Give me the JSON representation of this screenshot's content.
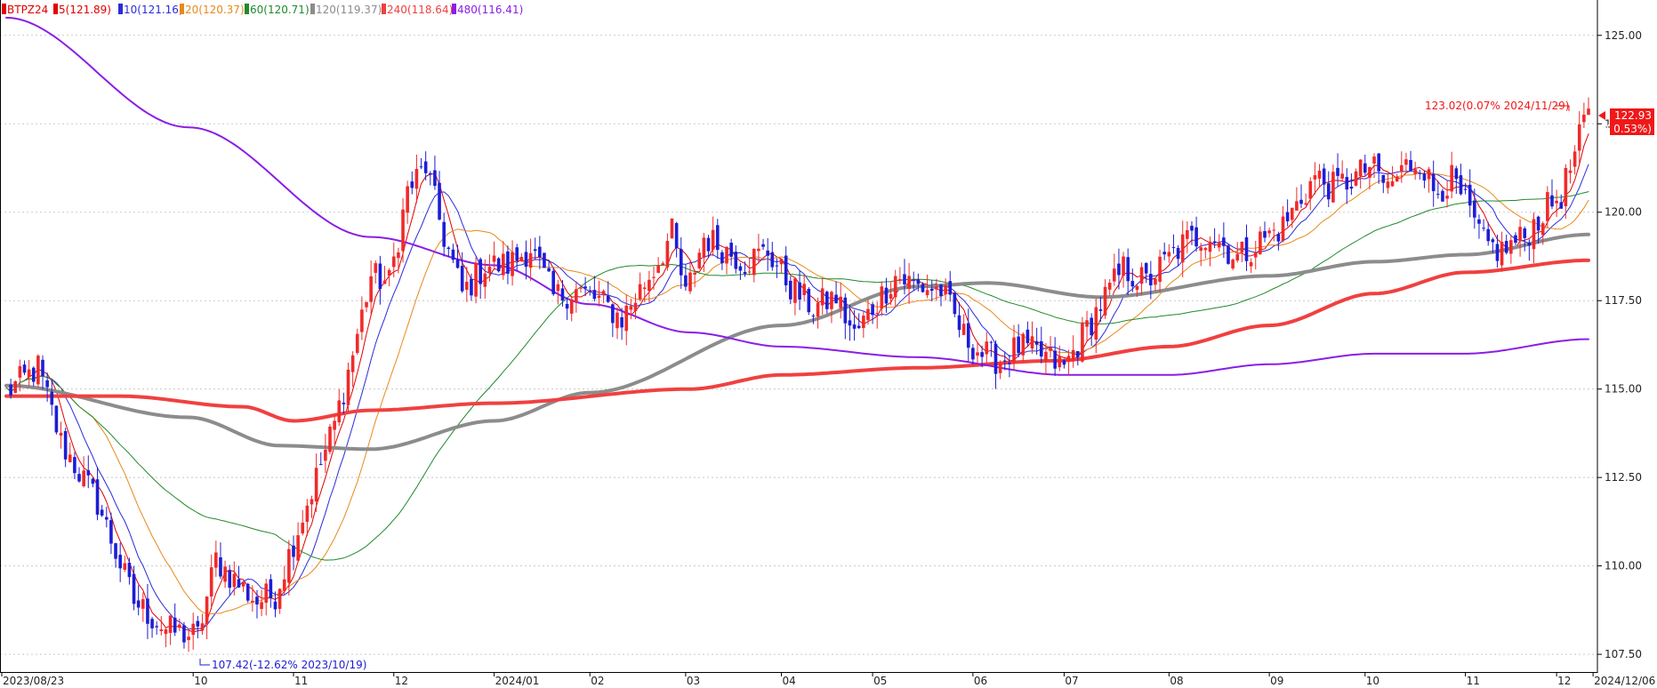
{
  "legend": [
    {
      "label": "BTPZ24",
      "color": "#e00000"
    },
    {
      "label": "5(121.89)",
      "color": "#e00000"
    },
    {
      "label": "10(121.16)",
      "color": "#2b2bd9"
    },
    {
      "label": "20(120.37)",
      "color": "#e8891a"
    },
    {
      "label": "60(120.71)",
      "color": "#1f8a2a"
    },
    {
      "label": "120(119.37)",
      "color": "#8c8c8c"
    },
    {
      "label": "240(118.64)",
      "color": "#f04040"
    },
    {
      "label": "480(116.41)",
      "color": "#8a1ee6"
    }
  ],
  "annotations": {
    "high_label": "123.02(0.07% 2024/11/29)",
    "low_label": "107.42(-12.62% 2023/10/19)",
    "last_price": "122.93",
    "last_change": "( 0.53%)"
  },
  "colors": {
    "up": "#f02a2a",
    "down": "#1d1dd6",
    "grid": "#c8c8c8",
    "price_tag": "#f01818"
  },
  "chart_data": {
    "type": "candlestick",
    "instrument": "BTPZ24",
    "x_start": "2023/08/23",
    "x_end": "2024/12/06",
    "ylim": [
      107,
      126
    ],
    "yticks": [
      107.5,
      110.0,
      112.5,
      115.0,
      117.5,
      120.0,
      122.5,
      125.0
    ],
    "ytick_labels": [
      "107.50",
      "110.00",
      "112.50",
      "115.00",
      "117.50",
      "120.00",
      "122.50",
      "125.00"
    ],
    "x_labels": [
      "2023/08/23",
      "10",
      "11",
      "12",
      "2024/01",
      "02",
      "03",
      "04",
      "05",
      "06",
      "07",
      "08",
      "09",
      "10",
      "11",
      "12",
      "2024/12/06"
    ],
    "x_label_sessions": [
      0,
      41,
      63,
      85,
      107,
      128,
      149,
      170,
      190,
      212,
      232,
      255,
      277,
      298,
      320,
      340,
      348
    ],
    "sessions": 347,
    "price_anchors": [
      [
        0,
        114.9
      ],
      [
        7,
        115.6
      ],
      [
        12,
        113.5
      ],
      [
        20,
        111.8
      ],
      [
        28,
        109.0
      ],
      [
        35,
        108.2
      ],
      [
        42,
        108.0
      ],
      [
        46,
        110.2
      ],
      [
        50,
        109.6
      ],
      [
        55,
        109.0
      ],
      [
        59,
        109.2
      ],
      [
        63,
        110.7
      ],
      [
        68,
        112.5
      ],
      [
        72,
        114.0
      ],
      [
        76,
        116.0
      ],
      [
        80,
        118.2
      ],
      [
        84,
        118.0
      ],
      [
        88,
        120.6
      ],
      [
        92,
        121.3
      ],
      [
        96,
        119.3
      ],
      [
        100,
        117.7
      ],
      [
        105,
        118.5
      ],
      [
        110,
        118.5
      ],
      [
        115,
        119.0
      ],
      [
        120,
        117.6
      ],
      [
        125,
        117.8
      ],
      [
        130,
        117.5
      ],
      [
        135,
        117.0
      ],
      [
        142,
        118.4
      ],
      [
        146,
        119.4
      ],
      [
        149,
        117.6
      ],
      [
        153,
        119.3
      ],
      [
        157,
        119.0
      ],
      [
        162,
        118.6
      ],
      [
        167,
        118.9
      ],
      [
        172,
        117.9
      ],
      [
        177,
        117.3
      ],
      [
        182,
        117.6
      ],
      [
        186,
        116.5
      ],
      [
        190,
        117.3
      ],
      [
        195,
        118.2
      ],
      [
        200,
        117.9
      ],
      [
        205,
        117.8
      ],
      [
        210,
        116.5
      ],
      [
        214,
        116.0
      ],
      [
        218,
        115.8
      ],
      [
        222,
        116.2
      ],
      [
        228,
        115.9
      ],
      [
        232,
        115.6
      ],
      [
        236,
        116.5
      ],
      [
        240,
        117.4
      ],
      [
        245,
        118.4
      ],
      [
        250,
        118.0
      ],
      [
        255,
        118.7
      ],
      [
        259,
        119.2
      ],
      [
        264,
        119.4
      ],
      [
        270,
        118.7
      ],
      [
        275,
        119.2
      ],
      [
        280,
        119.6
      ],
      [
        284,
        120.4
      ],
      [
        287,
        121.0
      ],
      [
        291,
        120.7
      ],
      [
        296,
        121.0
      ],
      [
        299,
        121.3
      ],
      [
        303,
        120.7
      ],
      [
        307,
        121.3
      ],
      [
        310,
        121.5
      ],
      [
        313,
        120.6
      ],
      [
        317,
        120.9
      ],
      [
        320,
        120.2
      ],
      [
        324,
        119.1
      ],
      [
        328,
        118.9
      ],
      [
        333,
        119.3
      ],
      [
        337,
        120.0
      ],
      [
        341,
        120.5
      ],
      [
        344,
        121.6
      ],
      [
        346,
        122.5
      ],
      [
        347,
        122.93
      ]
    ],
    "moving_averages": [
      {
        "name": "5",
        "value": 121.89,
        "color": "#e00000",
        "width": 1
      },
      {
        "name": "10",
        "value": 121.16,
        "color": "#2b2bd9",
        "width": 1
      },
      {
        "name": "20",
        "value": 120.37,
        "color": "#e8891a",
        "width": 1
      },
      {
        "name": "60",
        "value": 120.71,
        "color": "#1f8a2a",
        "width": 1
      },
      {
        "name": "120",
        "value": 119.37,
        "color": "#8c8c8c",
        "width": 4,
        "points": [
          [
            0,
            115.1
          ],
          [
            40,
            114.2
          ],
          [
            60,
            113.4
          ],
          [
            80,
            113.3
          ],
          [
            107,
            114.1
          ],
          [
            128,
            114.9
          ],
          [
            170,
            116.8
          ],
          [
            200,
            117.9
          ],
          [
            215,
            118.0
          ],
          [
            240,
            117.6
          ],
          [
            277,
            118.2
          ],
          [
            300,
            118.6
          ],
          [
            320,
            118.8
          ],
          [
            347,
            119.37
          ]
        ]
      },
      {
        "name": "240",
        "value": 118.64,
        "color": "#f04040",
        "width": 4,
        "points": [
          [
            0,
            114.8
          ],
          [
            25,
            114.8
          ],
          [
            52,
            114.5
          ],
          [
            63,
            114.1
          ],
          [
            80,
            114.4
          ],
          [
            107,
            114.6
          ],
          [
            150,
            115.0
          ],
          [
            170,
            115.4
          ],
          [
            200,
            115.6
          ],
          [
            230,
            115.8
          ],
          [
            255,
            116.2
          ],
          [
            277,
            116.8
          ],
          [
            300,
            117.7
          ],
          [
            320,
            118.3
          ],
          [
            347,
            118.64
          ]
        ]
      },
      {
        "name": "480",
        "value": 116.41,
        "color": "#8a1ee6",
        "width": 2,
        "points": [
          [
            0,
            125.5
          ],
          [
            40,
            122.4
          ],
          [
            80,
            119.3
          ],
          [
            107,
            118.5
          ],
          [
            128,
            117.4
          ],
          [
            150,
            116.6
          ],
          [
            170,
            116.2
          ],
          [
            200,
            115.9
          ],
          [
            232,
            115.4
          ],
          [
            255,
            115.4
          ],
          [
            277,
            115.7
          ],
          [
            300,
            116.0
          ],
          [
            320,
            116.0
          ],
          [
            347,
            116.41
          ]
        ]
      }
    ]
  }
}
